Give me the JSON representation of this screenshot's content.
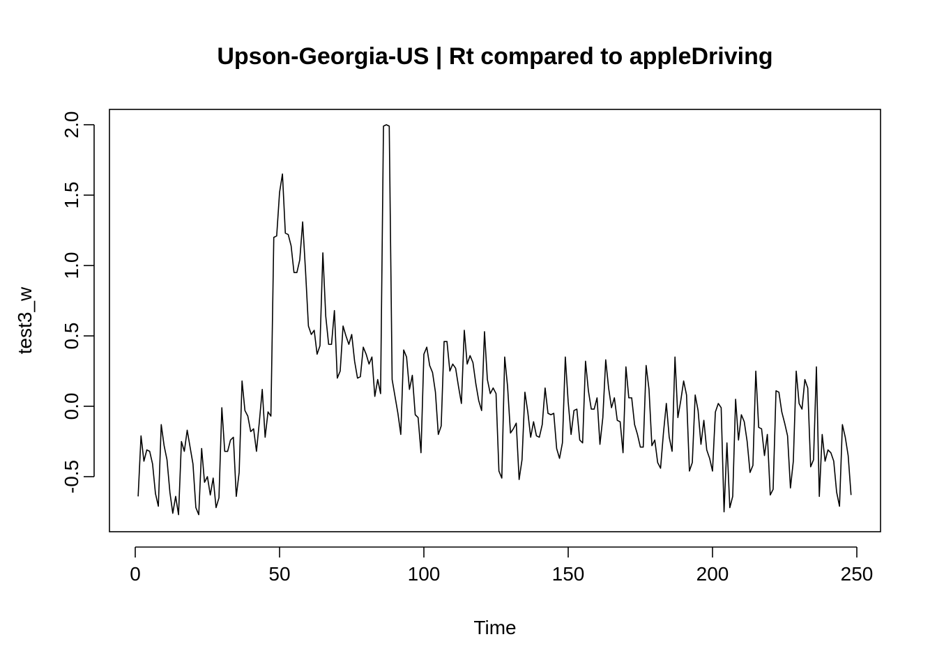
{
  "chart_data": {
    "type": "line",
    "title": "Upson-Georgia-US | Rt compared to appleDriving",
    "xlabel": "Time",
    "ylabel": "test3_w",
    "xlim": [
      0,
      250
    ],
    "ylim": [
      -0.8,
      2.0
    ],
    "grid": false,
    "legend": "none",
    "line_color": "#000000",
    "x_ticks": [
      0,
      50,
      100,
      150,
      200,
      250
    ],
    "x_tick_labels": [
      "0",
      "50",
      "100",
      "150",
      "200",
      "250"
    ],
    "y_ticks": [
      -0.5,
      0.0,
      0.5,
      1.0,
      1.5,
      2.0
    ],
    "y_tick_labels": [
      "-0.5",
      "0.0",
      "0.5",
      "1.0",
      "1.5",
      "2.0"
    ],
    "x": [
      1,
      2,
      3,
      4,
      5,
      6,
      7,
      8,
      9,
      10,
      11,
      12,
      13,
      14,
      15,
      16,
      17,
      18,
      19,
      20,
      21,
      22,
      23,
      24,
      25,
      26,
      27,
      28,
      29,
      30,
      31,
      32,
      33,
      34,
      35,
      36,
      37,
      38,
      39,
      40,
      41,
      42,
      43,
      44,
      45,
      46,
      47,
      48,
      49,
      50,
      51,
      52,
      53,
      54,
      55,
      56,
      57,
      58,
      59,
      60,
      61,
      62,
      63,
      64,
      65,
      66,
      67,
      68,
      69,
      70,
      71,
      72,
      73,
      74,
      75,
      76,
      77,
      78,
      79,
      80,
      81,
      82,
      83,
      84,
      85,
      86,
      87,
      88,
      89,
      90,
      91,
      92,
      93,
      94,
      95,
      96,
      97,
      98,
      99,
      100,
      101,
      102,
      103,
      104,
      105,
      106,
      107,
      108,
      109,
      110,
      111,
      112,
      113,
      114,
      115,
      116,
      117,
      118,
      119,
      120,
      121,
      122,
      123,
      124,
      125,
      126,
      127,
      128,
      129,
      130,
      131,
      132,
      133,
      134,
      135,
      136,
      137,
      138,
      139,
      140,
      141,
      142,
      143,
      144,
      145,
      146,
      147,
      148,
      149,
      150,
      151,
      152,
      153,
      154,
      155,
      156,
      157,
      158,
      159,
      160,
      161,
      162,
      163,
      164,
      165,
      166,
      167,
      168,
      169,
      170,
      171,
      172,
      173,
      174,
      175,
      176,
      177,
      178,
      179,
      180,
      181,
      182,
      183,
      184,
      185,
      186,
      187,
      188,
      189,
      190,
      191,
      192,
      193,
      194,
      195,
      196,
      197,
      198,
      199,
      200,
      201,
      202,
      203,
      204,
      205,
      206,
      207,
      208,
      209,
      210,
      211,
      212,
      213,
      214,
      215,
      216,
      217,
      218,
      219,
      220,
      221,
      222,
      223,
      224,
      225,
      226,
      227,
      228,
      229,
      230,
      231,
      232,
      233,
      234,
      235,
      236,
      237,
      238,
      239,
      240,
      241,
      242,
      243,
      244,
      245,
      246,
      247,
      248
    ],
    "values": [
      -0.64,
      -0.21,
      -0.39,
      -0.31,
      -0.32,
      -0.41,
      -0.62,
      -0.71,
      -0.13,
      -0.28,
      -0.38,
      -0.61,
      -0.76,
      -0.64,
      -0.77,
      -0.25,
      -0.32,
      -0.17,
      -0.29,
      -0.41,
      -0.72,
      -0.77,
      -0.3,
      -0.54,
      -0.5,
      -0.63,
      -0.51,
      -0.72,
      -0.65,
      -0.01,
      -0.32,
      -0.32,
      -0.24,
      -0.22,
      -0.64,
      -0.47,
      0.18,
      -0.03,
      -0.07,
      -0.18,
      -0.16,
      -0.32,
      -0.11,
      0.12,
      -0.22,
      -0.04,
      -0.07,
      1.2,
      1.21,
      1.52,
      1.65,
      1.23,
      1.22,
      1.14,
      0.95,
      0.95,
      1.04,
      1.31,
      0.96,
      0.57,
      0.51,
      0.54,
      0.37,
      0.43,
      1.09,
      0.64,
      0.44,
      0.44,
      0.68,
      0.2,
      0.25,
      0.57,
      0.5,
      0.44,
      0.51,
      0.32,
      0.2,
      0.21,
      0.42,
      0.37,
      0.3,
      0.35,
      0.07,
      0.19,
      0.09,
      1.99,
      2.0,
      1.99,
      0.19,
      0.07,
      -0.05,
      -0.2,
      0.4,
      0.35,
      0.12,
      0.22,
      -0.06,
      -0.08,
      -0.33,
      0.37,
      0.42,
      0.29,
      0.24,
      0.1,
      -0.2,
      -0.14,
      0.46,
      0.46,
      0.25,
      0.3,
      0.27,
      0.14,
      0.02,
      0.54,
      0.3,
      0.36,
      0.31,
      0.16,
      0.04,
      -0.03,
      0.53,
      0.19,
      0.09,
      0.13,
      0.09,
      -0.46,
      -0.51,
      0.35,
      0.14,
      -0.19,
      -0.16,
      -0.12,
      -0.52,
      -0.38,
      0.1,
      -0.04,
      -0.22,
      -0.11,
      -0.21,
      -0.22,
      -0.13,
      0.13,
      -0.05,
      -0.06,
      -0.05,
      -0.3,
      -0.37,
      -0.26,
      0.35,
      0.03,
      -0.2,
      -0.03,
      -0.02,
      -0.24,
      -0.26,
      0.32,
      0.11,
      -0.02,
      -0.02,
      0.06,
      -0.27,
      -0.08,
      0.33,
      0.13,
      -0.01,
      0.06,
      -0.1,
      -0.11,
      -0.33,
      0.28,
      0.06,
      0.06,
      -0.13,
      -0.2,
      -0.29,
      -0.29,
      0.29,
      0.12,
      -0.28,
      -0.24,
      -0.4,
      -0.44,
      -0.19,
      0.02,
      -0.22,
      -0.32,
      0.35,
      -0.08,
      0.04,
      0.18,
      0.08,
      -0.46,
      -0.4,
      0.08,
      -0.03,
      -0.27,
      -0.1,
      -0.31,
      -0.37,
      -0.46,
      -0.04,
      0.02,
      -0.01,
      -0.75,
      -0.26,
      -0.72,
      -0.64,
      0.05,
      -0.24,
      -0.06,
      -0.11,
      -0.25,
      -0.47,
      -0.42,
      0.25,
      -0.15,
      -0.16,
      -0.35,
      -0.2,
      -0.63,
      -0.59,
      0.11,
      0.1,
      -0.04,
      -0.12,
      -0.21,
      -0.58,
      -0.39,
      0.25,
      0.02,
      -0.02,
      0.19,
      0.13,
      -0.43,
      -0.38,
      0.28,
      -0.64,
      -0.2,
      -0.39,
      -0.31,
      -0.33,
      -0.39,
      -0.61,
      -0.71,
      -0.13,
      -0.22,
      -0.35,
      -0.63
    ]
  }
}
